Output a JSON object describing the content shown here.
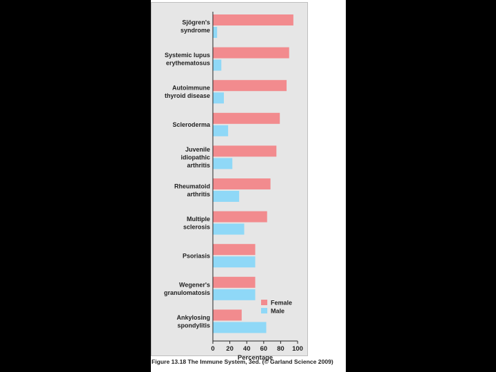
{
  "caption": "Figure 13.18 The Immune System, 3ed. (© Garland Science 2009)",
  "colors": {
    "female": "#f28b8e",
    "male": "#8fd8f7",
    "panel": "#e6e6e6",
    "axis": "#222222",
    "background": "#000000"
  },
  "chart_data": {
    "type": "bar",
    "orientation": "horizontal",
    "title": "",
    "xlabel": "Percentage",
    "ylabel": "",
    "xlim": [
      0,
      100
    ],
    "xticks": [
      0,
      20,
      40,
      60,
      80,
      100
    ],
    "grid": false,
    "legend_position": "bottom-right",
    "categories": [
      [
        "Sjögren's",
        "syndrome"
      ],
      [
        "Systemic lupus",
        "erythematosus"
      ],
      [
        "Autoimmune",
        "thyroid disease"
      ],
      [
        "Scleroderma"
      ],
      [
        "Juvenile",
        "idiopathic",
        "arthritis"
      ],
      [
        "Rheumatoid",
        "arthritis"
      ],
      [
        "Multiple",
        "sclerosis"
      ],
      [
        "Psoriasis"
      ],
      [
        "Wegener's",
        "granulomatosis"
      ],
      [
        "Ankylosing",
        "spondylitis"
      ]
    ],
    "series": [
      {
        "name": "Female",
        "values": [
          95,
          90,
          87,
          79,
          75,
          68,
          64,
          50,
          50,
          34
        ]
      },
      {
        "name": "Male",
        "values": [
          5,
          10,
          13,
          18,
          23,
          31,
          37,
          50,
          50,
          63
        ]
      }
    ]
  }
}
